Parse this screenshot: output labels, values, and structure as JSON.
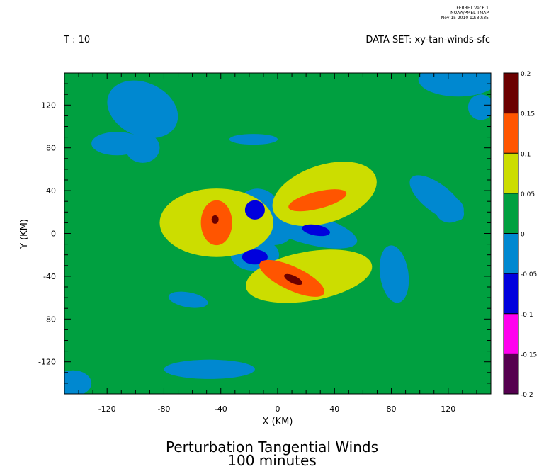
{
  "header": {
    "stamp_lines": [
      "FERRET Ver.6.1",
      "NOAA/PMEL TMAP",
      "Nov 15 2010 12:30:35"
    ],
    "time_label": "T : 10",
    "dataset_label": "DATA SET: xy-tan-winds-sfc"
  },
  "chart_data": {
    "type": "heatmap",
    "title": "Perturbation Tangential Winds",
    "subtitle": "100 minutes",
    "xlabel": "X (KM)",
    "ylabel": "Y (KM)",
    "xlim": [
      -150,
      150
    ],
    "ylim": [
      -150,
      150
    ],
    "x_ticks": [
      -120,
      -80,
      -40,
      0,
      40,
      80,
      120
    ],
    "y_ticks": [
      120,
      80,
      40,
      0,
      -40,
      -80,
      -120
    ],
    "x_tick_labels": [
      "-120",
      "-80",
      "-40",
      "0",
      "40",
      "80",
      "120"
    ],
    "y_tick_labels": [
      "120",
      "80",
      "40",
      "0",
      "-40",
      "-80",
      "-120"
    ],
    "background_level": 0.025,
    "colorbar": {
      "levels": [
        0.2,
        0.15,
        0.1,
        0.05,
        0,
        -0.05,
        -0.1,
        -0.15,
        -0.2
      ],
      "labels": [
        "0.2",
        "0.15",
        "0.1",
        "0.05",
        "0",
        "-0.05",
        "-0.1",
        "-0.15",
        "-0.2"
      ],
      "colors": [
        "#6b0000",
        "#ff5500",
        "#ccdd00",
        "#00a040",
        "#0088d0",
        "#0000dd",
        "#ff00ee",
        "#55004f"
      ]
    },
    "regions": [
      {
        "name": "tan-cell-nw",
        "value": 0.075,
        "cx": -43,
        "cy": 10,
        "rx": 40,
        "ry": 32,
        "rot": 0
      },
      {
        "name": "tan-cell-ne",
        "value": 0.075,
        "cx": 33,
        "cy": 37,
        "rx": 38,
        "ry": 27,
        "rot": 18
      },
      {
        "name": "tan-cell-s",
        "value": 0.075,
        "cx": 22,
        "cy": -40,
        "rx": 45,
        "ry": 23,
        "rot": 10
      },
      {
        "name": "tan-cell-nw-mid",
        "value": 0.125,
        "cx": -43,
        "cy": 10,
        "rx": 11,
        "ry": 21,
        "rot": 0
      },
      {
        "name": "tan-cell-ne-mid",
        "value": 0.125,
        "cx": 28,
        "cy": 31,
        "rx": 21,
        "ry": 8,
        "rot": 14
      },
      {
        "name": "tan-cell-s-mid",
        "value": 0.125,
        "cx": 10,
        "cy": -42,
        "rx": 25,
        "ry": 11,
        "rot": -25
      },
      {
        "name": "tan-cell-nw-core",
        "value": 0.175,
        "cx": -44,
        "cy": 13,
        "rx": 2.5,
        "ry": 4,
        "rot": 0
      },
      {
        "name": "tan-cell-s-core",
        "value": 0.175,
        "cx": 11,
        "cy": -43,
        "rx": 7,
        "ry": 3.5,
        "rot": -25
      },
      {
        "name": "neg-arm-nw",
        "value": -0.025,
        "cx": -15,
        "cy": 17,
        "rx": 17,
        "ry": 25,
        "rot": -15
      },
      {
        "name": "neg-arm-e",
        "value": -0.025,
        "cx": 22,
        "cy": 4,
        "rx": 35,
        "ry": 14,
        "rot": -15
      },
      {
        "name": "neg-arm-sw",
        "value": -0.025,
        "cx": -16,
        "cy": -20,
        "rx": 17,
        "ry": 15,
        "rot": 0
      },
      {
        "name": "neg-center",
        "value": -0.025,
        "cx": -3,
        "cy": 3,
        "rx": 14,
        "ry": 14,
        "rot": 0
      },
      {
        "name": "neg-core-n",
        "value": -0.075,
        "cx": -16,
        "cy": 22,
        "rx": 7,
        "ry": 9,
        "rot": 0
      },
      {
        "name": "neg-core-e",
        "value": -0.075,
        "cx": 27,
        "cy": 3,
        "rx": 10,
        "ry": 5,
        "rot": -10
      },
      {
        "name": "neg-core-sw",
        "value": -0.075,
        "cx": -16,
        "cy": -22,
        "rx": 9,
        "ry": 7,
        "rot": 0
      },
      {
        "name": "patch-nw-1",
        "value": -0.025,
        "cx": -95,
        "cy": 116,
        "rx": 26,
        "ry": 25,
        "rot": -25
      },
      {
        "name": "patch-nw-2",
        "value": -0.025,
        "cx": -113,
        "cy": 84,
        "rx": 18,
        "ry": 11,
        "rot": 0
      },
      {
        "name": "patch-nw-3",
        "value": -0.025,
        "cx": -95,
        "cy": 80,
        "rx": 12,
        "ry": 14,
        "rot": 0
      },
      {
        "name": "patch-ne-corner",
        "value": -0.025,
        "cx": 127,
        "cy": 144,
        "rx": 28,
        "ry": 16,
        "rot": 0
      },
      {
        "name": "patch-ne-2",
        "value": -0.025,
        "cx": 143,
        "cy": 118,
        "rx": 9,
        "ry": 12,
        "rot": 0
      },
      {
        "name": "patch-n-strip",
        "value": -0.025,
        "cx": -17,
        "cy": 88,
        "rx": 17,
        "ry": 5,
        "rot": 0
      },
      {
        "name": "patch-east",
        "value": -0.025,
        "cx": 112,
        "cy": 33,
        "rx": 23,
        "ry": 13,
        "rot": -38
      },
      {
        "name": "patch-east-2",
        "value": -0.025,
        "cx": 121,
        "cy": 22,
        "rx": 10,
        "ry": 12,
        "rot": 0
      },
      {
        "name": "patch-east-south",
        "value": -0.025,
        "cx": 82,
        "cy": -38,
        "rx": 10,
        "ry": 27,
        "rot": 8
      },
      {
        "name": "patch-south",
        "value": -0.025,
        "cx": -48,
        "cy": -127,
        "rx": 32,
        "ry": 9,
        "rot": 0
      },
      {
        "name": "patch-sw-small",
        "value": -0.025,
        "cx": -63,
        "cy": -62,
        "rx": 14,
        "ry": 7,
        "rot": -10
      },
      {
        "name": "patch-sw-corner",
        "value": -0.025,
        "cx": -144,
        "cy": -140,
        "rx": 13,
        "ry": 12,
        "rot": 0
      }
    ]
  }
}
